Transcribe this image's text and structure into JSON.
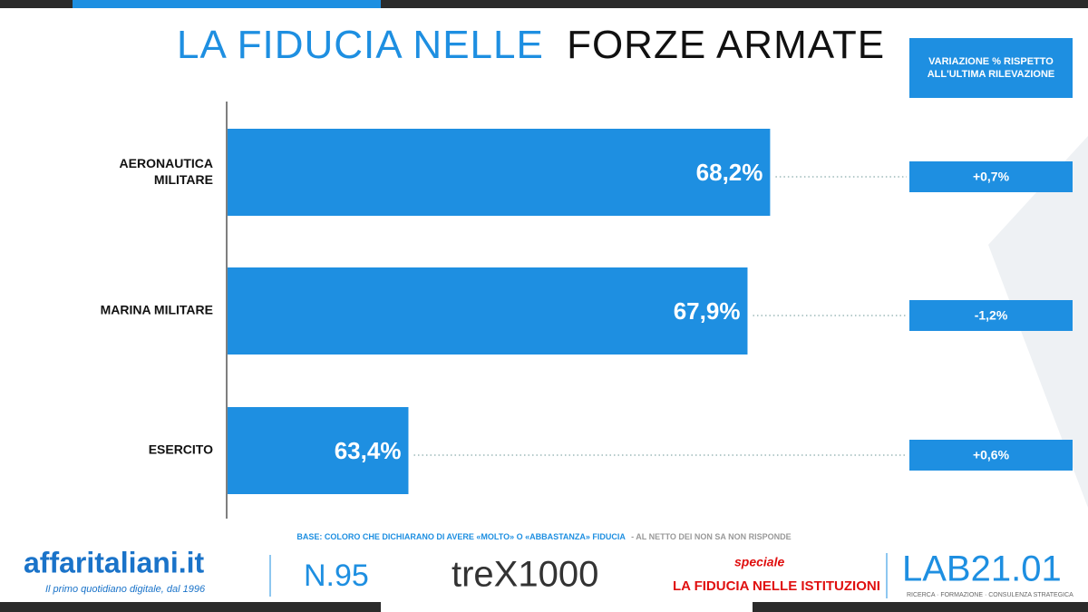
{
  "chart_data": {
    "type": "bar",
    "orientation": "horizontal",
    "title_parts": [
      "LA FIDUCIA NELLE",
      "FORZE ARMATE"
    ],
    "categories": [
      "AERONAUTICA MILITARE",
      "MARINA MILITARE",
      "ESERCITO"
    ],
    "values": [
      68.2,
      67.9,
      63.4
    ],
    "value_labels": [
      "68,2%",
      "67,9%",
      "63,4%"
    ],
    "color": "#1e8fe1",
    "xlim": [
      61,
      70
    ],
    "variation": {
      "title": "VARIAZIONE % RISPETTO ALL'ULTIMA RILEVAZIONE",
      "values": [
        0.7,
        -1.2,
        0.6
      ],
      "value_labels": [
        "+0,7%",
        "-1,2%",
        "+0,6%"
      ]
    },
    "note_parts": [
      "BASE: COLORO CHE DICHIARANO DI AVERE «MOLTO» O «ABBASTANZA» FIDUCIA",
      "- AL NETTO DEI NON SA NON RISPONDE"
    ]
  },
  "footer": {
    "brand": "affaritaliani.it",
    "tagline": "Il primo quotidiano digitale, dal 1996",
    "issue": "N.95",
    "trex": "treX1000",
    "speciale": "speciale",
    "special_title": "LA FIDUCIA NELLE ISTITUZIONI",
    "lab": "LAB21.01",
    "lab_tagline": "RICERCA · FORMAZIONE · CONSULENZA STRATEGICA"
  }
}
